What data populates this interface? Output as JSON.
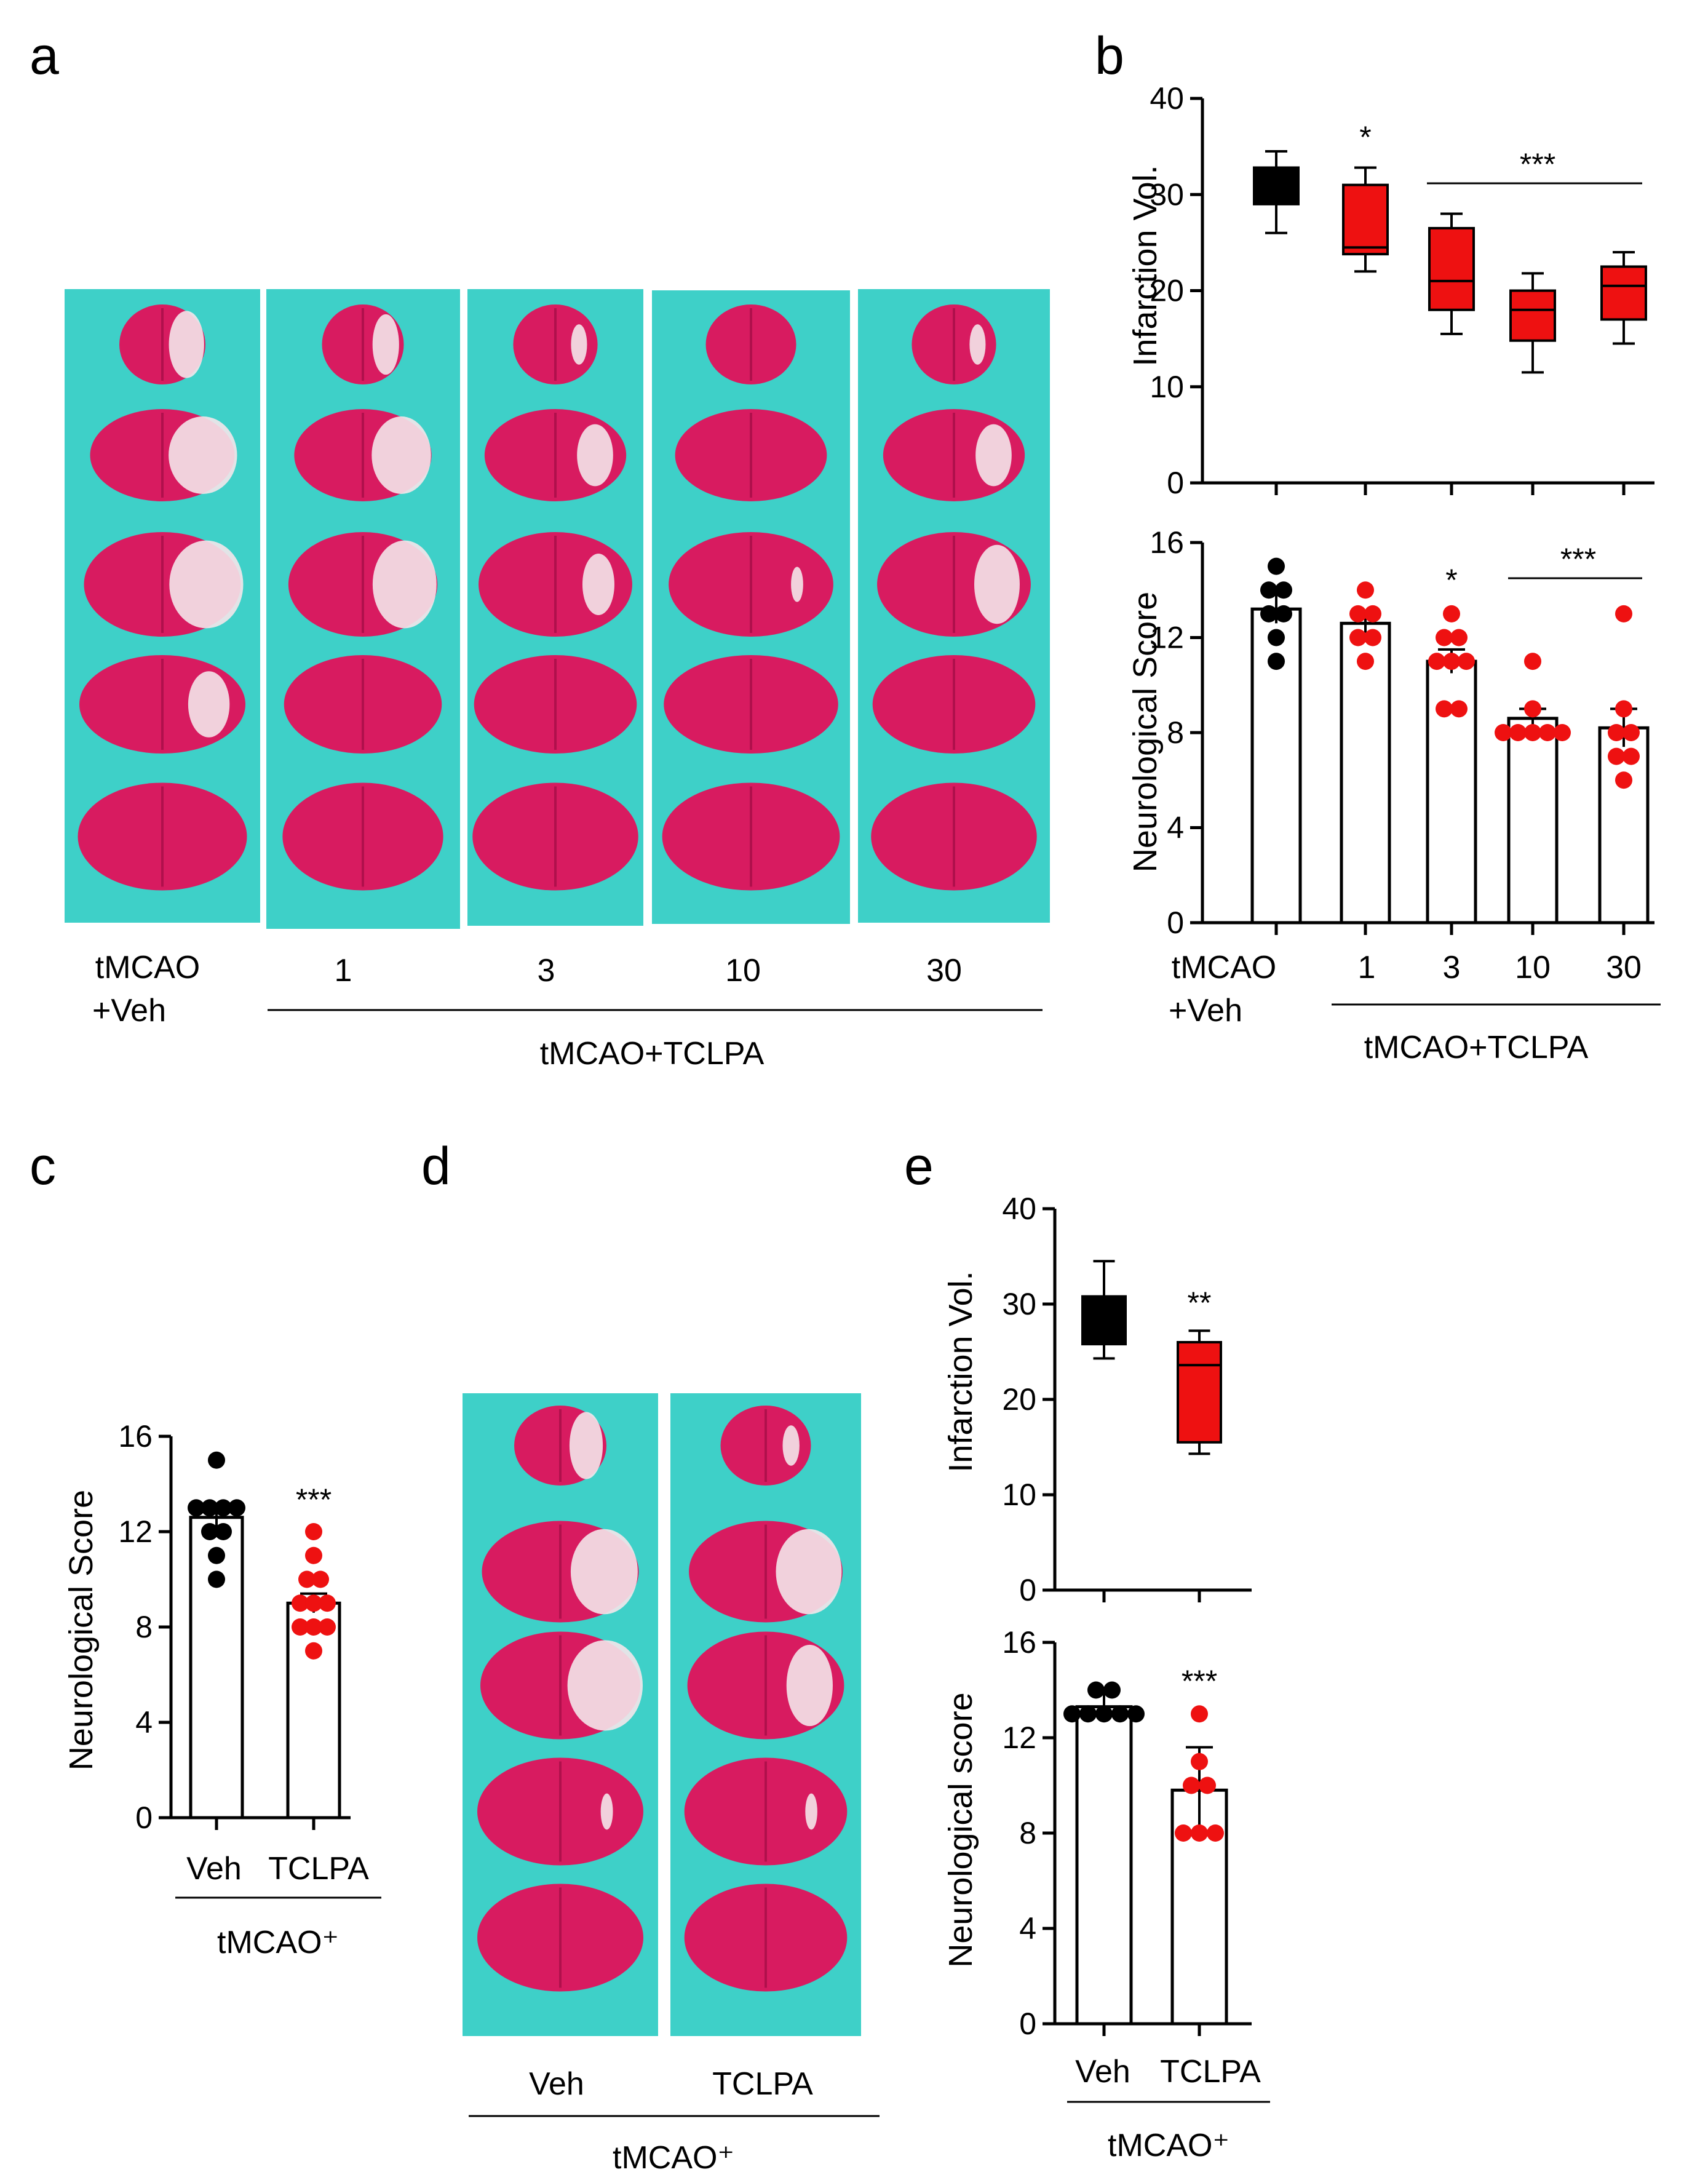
{
  "colors": {
    "vehicle": "#000000",
    "treatment": "#ee1111",
    "photo_background": "#3ed0c8",
    "tissue": "#d81b60",
    "infarct": "#f4e6ea"
  },
  "panels": {
    "a": {
      "letter": "a",
      "image": "TTC-stained coronal brain sections, 5 per group",
      "labels": [
        "tMCAO",
        "+Veh",
        "1",
        "3",
        "10",
        "30"
      ],
      "group_label": "tMCAO+TCLPA"
    },
    "d": {
      "letter": "d",
      "image": "TTC-stained coronal brain sections, 5 per group",
      "labels": [
        "Veh",
        "TCLPA"
      ],
      "group_label": "tMCAO⁺"
    }
  },
  "chart_data": [
    {
      "id": "b-top",
      "panel": "b",
      "letter": "b",
      "type": "box",
      "ylabel": "Infarction Vol.",
      "ylim": [
        0,
        40
      ],
      "yticks": [
        "0",
        "10",
        "20",
        "30",
        "40"
      ],
      "categories": [
        "tMCAO+Veh",
        "1",
        "3",
        "10",
        "30"
      ],
      "boxes": [
        {
          "name": "tMCAO+Veh",
          "min": 26,
          "q1": 29,
          "median": 31,
          "q3": 32.8,
          "max": 34.5,
          "color": "vehicle"
        },
        {
          "name": "1",
          "min": 22,
          "q1": 23.8,
          "median": 24.5,
          "q3": 31,
          "max": 32.8,
          "color": "treatment"
        },
        {
          "name": "3",
          "min": 15.5,
          "q1": 18,
          "median": 21,
          "q3": 26.5,
          "max": 28,
          "color": "treatment"
        },
        {
          "name": "10",
          "min": 11.5,
          "q1": 14.8,
          "median": 18,
          "q3": 20,
          "max": 21.8,
          "color": "treatment"
        },
        {
          "name": "30",
          "min": 14.5,
          "q1": 17,
          "median": 20.5,
          "q3": 22.5,
          "max": 24,
          "color": "treatment"
        }
      ],
      "annotations": [
        {
          "text": "*",
          "at": "1"
        },
        {
          "text": "***",
          "span": [
            "3",
            "30"
          ]
        }
      ]
    },
    {
      "id": "b-bottom",
      "panel": "b",
      "type": "bar-scatter",
      "ylabel": "Neurological Score",
      "ylim": [
        0,
        16
      ],
      "yticks": [
        "0",
        "4",
        "8",
        "12",
        "16"
      ],
      "categories": [
        "tMCAO",
        "1",
        "3",
        "10",
        "30"
      ],
      "category_sublabels": [
        "+Veh"
      ],
      "group_label": "tMCAO+TCLPA",
      "bars": [
        {
          "name": "tMCAO+Veh",
          "mean": 13.2,
          "sem": 0.6,
          "points": [
            15,
            14,
            14,
            13,
            13,
            12,
            11
          ],
          "color": "vehicle"
        },
        {
          "name": "1",
          "mean": 12.6,
          "sem": 0.4,
          "points": [
            14,
            13,
            13,
            12,
            12,
            11
          ],
          "color": "treatment"
        },
        {
          "name": "3",
          "mean": 11.0,
          "sem": 0.5,
          "points": [
            13,
            12,
            12,
            11,
            11,
            11,
            9,
            9
          ],
          "color": "treatment"
        },
        {
          "name": "10",
          "mean": 8.6,
          "sem": 0.4,
          "points": [
            11,
            9,
            8,
            8,
            8,
            8,
            8
          ],
          "color": "treatment"
        },
        {
          "name": "30",
          "mean": 8.2,
          "sem": 0.8,
          "points": [
            13,
            9,
            8,
            8,
            7,
            7,
            6
          ],
          "color": "treatment"
        }
      ],
      "annotations": [
        {
          "text": "*",
          "at": "3"
        },
        {
          "text": "***",
          "span": [
            "10",
            "30"
          ]
        }
      ]
    },
    {
      "id": "c",
      "panel": "c",
      "letter": "c",
      "type": "bar-scatter",
      "ylabel": "Neurological Score",
      "ylim": [
        0,
        16
      ],
      "yticks": [
        "0",
        "4",
        "8",
        "12",
        "16"
      ],
      "categories": [
        "Veh",
        "TCLPA"
      ],
      "group_label": "tMCAO⁺",
      "bars": [
        {
          "name": "Veh",
          "mean": 12.6,
          "sem": 0.4,
          "points": [
            15,
            13,
            13,
            13,
            13,
            12,
            12,
            11,
            10
          ],
          "color": "vehicle"
        },
        {
          "name": "TCLPA",
          "mean": 9.0,
          "sem": 0.4,
          "points": [
            12,
            11,
            10,
            10,
            9,
            9,
            9,
            8,
            8,
            8,
            7
          ],
          "color": "treatment"
        }
      ],
      "annotations": [
        {
          "text": "***",
          "at": "TCLPA"
        }
      ]
    },
    {
      "id": "e-top",
      "panel": "e",
      "letter": "e",
      "type": "box",
      "ylabel": "Infarction Vol.",
      "ylim": [
        0,
        40
      ],
      "yticks": [
        "0",
        "10",
        "20",
        "30",
        "40"
      ],
      "categories": [
        "Veh",
        "TCLPA"
      ],
      "boxes": [
        {
          "name": "Veh",
          "min": 24.3,
          "q1": 25.8,
          "median": 28,
          "q3": 30.8,
          "max": 34.5,
          "color": "vehicle"
        },
        {
          "name": "TCLPA",
          "min": 14.3,
          "q1": 15.5,
          "median": 23.6,
          "q3": 26,
          "max": 27.2,
          "color": "treatment"
        }
      ],
      "annotations": [
        {
          "text": "**",
          "at": "TCLPA"
        }
      ]
    },
    {
      "id": "e-bottom",
      "panel": "e",
      "type": "bar-scatter",
      "ylabel": "Neurological score",
      "ylim": [
        0,
        16
      ],
      "yticks": [
        "0",
        "4",
        "8",
        "12",
        "16"
      ],
      "categories": [
        "Veh",
        "TCLPA"
      ],
      "group_label": "tMCAO⁺",
      "bars": [
        {
          "name": "Veh",
          "mean": 13.3,
          "sem": 0.6,
          "points": [
            14,
            14,
            13,
            13,
            13,
            13,
            13
          ],
          "color": "vehicle"
        },
        {
          "name": "TCLPA",
          "mean": 9.8,
          "sem": 1.8,
          "points": [
            13,
            11,
            10,
            10,
            8,
            8,
            8
          ],
          "color": "treatment"
        }
      ],
      "annotations": [
        {
          "text": "***",
          "at": "TCLPA"
        }
      ]
    }
  ]
}
